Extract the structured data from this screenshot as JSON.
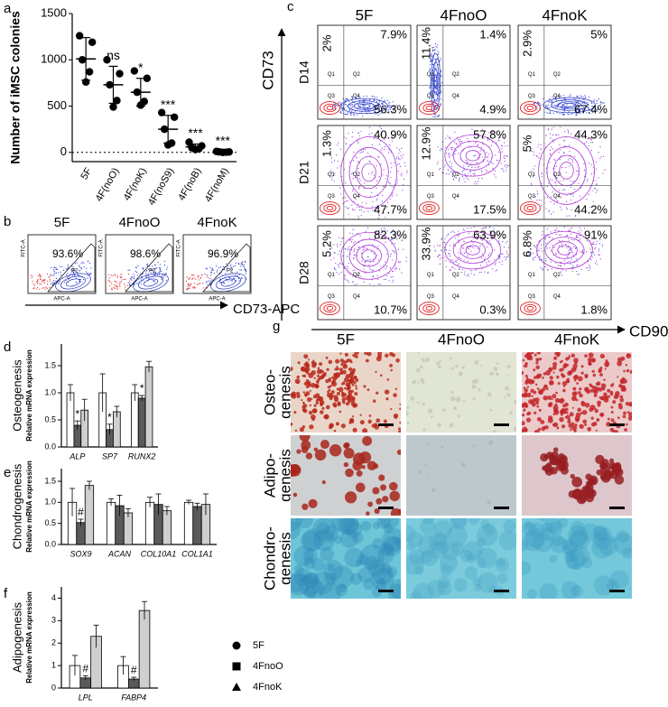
{
  "panel_labels": [
    "a",
    "b",
    "c",
    "d",
    "e",
    "f",
    "g"
  ],
  "chart_data": [
    {
      "type": "dot",
      "ylabel": "Number of iMSC colonies",
      "categories": [
        "5F",
        "4F(noO)",
        "4F(noK)",
        "4F(noS9)",
        "4F(noB)",
        "4F(noM)"
      ],
      "points": [
        [
          1260,
          1190,
          1000,
          870,
          760
        ],
        [
          1000,
          850,
          730,
          560,
          490
        ],
        [
          880,
          800,
          650,
          550,
          510
        ],
        [
          430,
          380,
          250,
          100,
          80
        ],
        [
          110,
          70,
          50,
          40,
          30
        ],
        [
          10,
          5,
          5,
          2,
          0
        ]
      ],
      "means": [
        1010,
        730,
        650,
        250,
        60,
        5
      ],
      "sd": [
        230,
        200,
        150,
        150,
        30,
        5
      ],
      "significance": [
        null,
        "ns",
        "*",
        "***",
        "***",
        "***"
      ],
      "ylim": [
        -100,
        1500
      ],
      "yticks": [
        0,
        500,
        1000,
        1500
      ],
      "zero_line": true
    },
    {
      "type": "bar",
      "title": "Osteogenesis",
      "ylabel": "Relative mRNA expression",
      "categories": [
        "ALP",
        "SP7",
        "RUNX2"
      ],
      "series": [
        {
          "color": "#ffffff",
          "values": [
            1,
            1,
            1
          ],
          "errors": [
            0.15,
            0.35,
            0.15
          ]
        },
        {
          "color": "#5a5a5a",
          "values": [
            0.4,
            0.32,
            0.9
          ],
          "errors": [
            0.08,
            0.1,
            0.05
          ],
          "labels": [
            "*",
            "*",
            "*"
          ]
        },
        {
          "color": "#cfcfcf",
          "values": [
            0.68,
            0.65,
            1.48
          ],
          "errors": [
            0.2,
            0.1,
            0.1
          ]
        }
      ],
      "ylim": [
        0,
        1.9
      ],
      "yticks": [
        {
          "value": 0,
          "label": "0.0"
        },
        {
          "value": 0.5,
          "label": "0.5"
        },
        {
          "value": 1,
          "label": "1.0"
        },
        {
          "value": 1.5,
          "label": "1.5"
        }
      ]
    },
    {
      "type": "bar",
      "title": "Chondrogenesis",
      "ylabel": "Relative mRNA expression",
      "categories": [
        "SOX9",
        "ACAN",
        "COL10A1",
        "COL1A1"
      ],
      "series": [
        {
          "color": "#ffffff",
          "values": [
            1,
            1,
            1,
            1
          ],
          "errors": [
            0.33,
            0.08,
            0.12,
            0.05
          ]
        },
        {
          "color": "#5a5a5a",
          "values": [
            0.52,
            0.92,
            0.95,
            0.9
          ],
          "errors": [
            0.08,
            0.25,
            0.25,
            0.08
          ],
          "labels": [
            "#",
            null,
            null,
            null
          ]
        },
        {
          "color": "#cfcfcf",
          "values": [
            1.4,
            0.75,
            0.8,
            0.95
          ],
          "errors": [
            0.1,
            0.1,
            0.1,
            0.25
          ]
        }
      ],
      "ylim": [
        0,
        1.8
      ],
      "yticks": [
        {
          "value": 0,
          "label": "0.0"
        },
        {
          "value": 0.5,
          "label": "0.5"
        },
        {
          "value": 1,
          "label": "1.0"
        },
        {
          "value": 1.5,
          "label": "1.5"
        }
      ]
    },
    {
      "type": "bar",
      "title": "Adipogenesis",
      "ylabel": "Relative mRNA expression",
      "categories": [
        "LPL",
        "FABP4"
      ],
      "series": [
        {
          "name": "5F",
          "marker": "circle",
          "color": "#ffffff",
          "values": [
            1,
            1
          ],
          "errors": [
            0.45,
            0.4
          ]
        },
        {
          "name": "4FnoO",
          "marker": "square",
          "color": "#5a5a5a",
          "values": [
            0.45,
            0.4
          ],
          "errors": [
            0.1,
            0.08
          ],
          "labels": [
            "#",
            "#"
          ]
        },
        {
          "name": "4FnoK",
          "marker": "triangle",
          "color": "#cfcfcf",
          "values": [
            2.3,
            3.45
          ],
          "errors": [
            0.5,
            0.4
          ]
        }
      ],
      "legend": "right",
      "ylim": [
        0,
        4.5
      ],
      "yticks": [
        0,
        1,
        2,
        3,
        4
      ]
    }
  ],
  "flow_b": {
    "x_axis_label": "CD73-APC",
    "axis_x": "APC-A",
    "axis_y": "FITC-A",
    "plots": [
      {
        "title": "5F",
        "gate": "P2",
        "percent": "93.6%"
      },
      {
        "title": "4FnoO",
        "gate": "P2",
        "percent": "98.6%"
      },
      {
        "title": "4FnoK",
        "gate": "P2",
        "percent": "96.9%"
      }
    ]
  },
  "flow_c": {
    "y_axis_label": "CD73",
    "x_axis_label": "CD90",
    "columns": [
      "5F",
      "4FnoO",
      "4FnoK"
    ],
    "quadrants": [
      "Q1",
      "Q2",
      "Q3",
      "Q4"
    ],
    "rows": [
      {
        "label": "D14",
        "cells": [
          {
            "q1": "2%",
            "q2": "7.9%",
            "q4": "56.3%"
          },
          {
            "q1": "11.4%",
            "q2": "1.4%",
            "q4": "4.9%"
          },
          {
            "q1": "2.9%",
            "q2": "5%",
            "q4": "67.4%"
          }
        ]
      },
      {
        "label": "D21",
        "cells": [
          {
            "q1": "1.3%",
            "q2": "40.9%",
            "q4": "47.7%"
          },
          {
            "q1": "12.9%",
            "q2": "57.8%",
            "q4": "17.5%"
          },
          {
            "q1": "5%",
            "q2": "44.3%",
            "q4": "44.2%"
          }
        ]
      },
      {
        "label": "D28",
        "cells": [
          {
            "q1": "5.2%",
            "q2": "82.3%",
            "q4": "10.7%"
          },
          {
            "q1": "33.9%",
            "q2": "63.9%",
            "q4": "0.3%"
          },
          {
            "q1": "6.8%",
            "q2": "91%",
            "q4": "1.8%"
          }
        ]
      }
    ]
  },
  "images_g": {
    "columns": [
      "5F",
      "4FnoO",
      "4FnoK"
    ],
    "rows": [
      {
        "label": [
          "Osteo-",
          "genesis"
        ]
      },
      {
        "label": [
          "Adipo-",
          "genesis"
        ]
      },
      {
        "label": [
          "Chondro-",
          "genesis"
        ]
      }
    ]
  }
}
